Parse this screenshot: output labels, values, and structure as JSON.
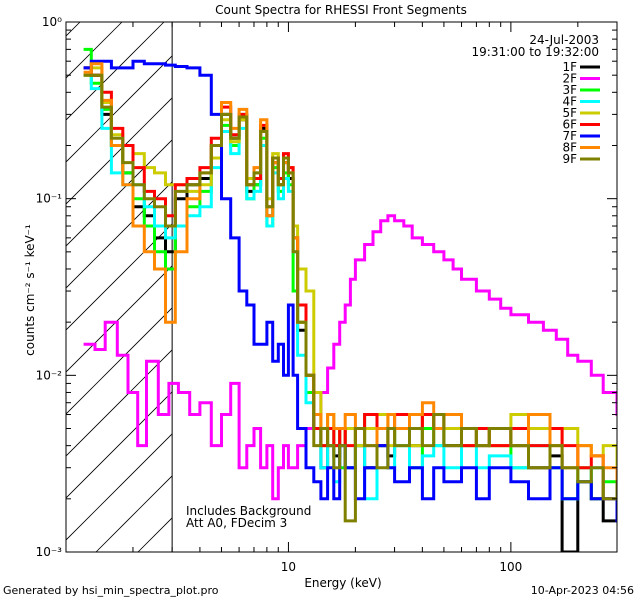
{
  "chart_data": {
    "type": "line",
    "title": "Count Spectra for RHESSI Front Segments",
    "xlabel": "Energy (keV)",
    "ylabel": "counts cm⁻² s⁻¹ keV⁻¹",
    "xscale": "log",
    "yscale": "log",
    "xlim": [
      1,
      300
    ],
    "ylim": [
      0.001,
      1
    ],
    "x_tick_labels": [
      {
        "value": 10,
        "label": "10"
      },
      {
        "value": 100,
        "label": "100"
      }
    ],
    "y_tick_labels": [
      {
        "value": 0.001,
        "label": "10⁻³"
      },
      {
        "value": 0.01,
        "label": "10⁻²"
      },
      {
        "value": 0.1,
        "label": "10⁻¹"
      },
      {
        "value": 1,
        "label": "10⁰"
      }
    ],
    "date": "24-Jul-2003",
    "time_range": "19:31:00 to 19:32:00",
    "legend_position": "top-right",
    "annotations": [
      "Includes Background",
      "Att A0, FDecim 3"
    ],
    "shaded_region_kev": [
      1,
      3
    ],
    "series": [
      {
        "name": "1F",
        "color": "#000000",
        "x": [
          1.2,
          1.3,
          1.45,
          1.6,
          1.8,
          2.0,
          2.25,
          2.5,
          2.8,
          3.1,
          3.5,
          4.0,
          4.5,
          5.0,
          5.5,
          6.0,
          6.5,
          7.0,
          7.5,
          8.0,
          8.5,
          9.0,
          9.5,
          10,
          10.5,
          11,
          12,
          13,
          14,
          15,
          16,
          17,
          18,
          20,
          22,
          25,
          28,
          30,
          35,
          40,
          45,
          50,
          60,
          70,
          80,
          100,
          120,
          150,
          170,
          200,
          230,
          260,
          300
        ],
        "y": [
          0.55,
          0.5,
          0.3,
          0.2,
          0.14,
          0.09,
          0.08,
          0.06,
          0.05,
          0.1,
          0.12,
          0.13,
          0.2,
          0.3,
          0.22,
          0.28,
          0.11,
          0.12,
          0.25,
          0.08,
          0.16,
          0.12,
          0.16,
          0.13,
          0.06,
          0.018,
          0.01,
          0.005,
          0.003,
          0.004,
          0.0035,
          0.005,
          0.003,
          0.004,
          0.003,
          0.004,
          0.0035,
          0.005,
          0.004,
          0.006,
          0.005,
          0.004,
          0.005,
          0.004,
          0.005,
          0.004,
          0.003,
          0.0035,
          0.001,
          0.0025,
          0.002,
          0.0015,
          0.002
        ]
      },
      {
        "name": "2F",
        "color": "#ff00ff",
        "x": [
          1.2,
          1.35,
          1.5,
          1.7,
          1.9,
          2.1,
          2.3,
          2.6,
          2.9,
          3.2,
          3.6,
          4.0,
          4.5,
          5.0,
          5.5,
          6.0,
          6.5,
          7.0,
          7.5,
          8.0,
          8.5,
          9.0,
          9.5,
          10,
          11,
          12,
          13,
          14,
          15,
          16,
          17,
          18,
          19,
          20,
          22,
          24,
          26,
          28,
          30,
          33,
          36,
          40,
          45,
          50,
          55,
          60,
          70,
          80,
          90,
          100,
          120,
          140,
          160,
          180,
          200,
          230,
          260,
          300
        ],
        "y": [
          0.015,
          0.014,
          0.02,
          0.013,
          0.008,
          0.004,
          0.012,
          0.006,
          0.009,
          0.008,
          0.006,
          0.007,
          0.004,
          0.006,
          0.009,
          0.003,
          0.004,
          0.005,
          0.003,
          0.004,
          0.002,
          0.003,
          0.004,
          0.003,
          0.004,
          0.005,
          0.006,
          0.008,
          0.011,
          0.015,
          0.02,
          0.025,
          0.035,
          0.045,
          0.055,
          0.065,
          0.075,
          0.08,
          0.075,
          0.07,
          0.06,
          0.055,
          0.05,
          0.045,
          0.04,
          0.035,
          0.03,
          0.027,
          0.024,
          0.022,
          0.02,
          0.018,
          0.016,
          0.013,
          0.012,
          0.01,
          0.008,
          0.006
        ]
      },
      {
        "name": "3F",
        "color": "#00ff00",
        "x": [
          1.2,
          1.3,
          1.45,
          1.6,
          1.8,
          2.0,
          2.25,
          2.5,
          2.8,
          3.1,
          3.5,
          4.0,
          4.5,
          5.0,
          5.5,
          6.0,
          6.5,
          7.0,
          7.5,
          8.0,
          8.5,
          9.0,
          9.5,
          10,
          10.5,
          11,
          12,
          13,
          14,
          15,
          16,
          17,
          18,
          20,
          22,
          25,
          28,
          30,
          35,
          40,
          45,
          50,
          60,
          70,
          80,
          100,
          120,
          150,
          170,
          200,
          230,
          260,
          300
        ],
        "y": [
          0.7,
          0.45,
          0.32,
          0.2,
          0.14,
          0.1,
          0.07,
          0.05,
          0.04,
          0.07,
          0.09,
          0.11,
          0.17,
          0.26,
          0.2,
          0.3,
          0.1,
          0.12,
          0.22,
          0.07,
          0.15,
          0.11,
          0.14,
          0.12,
          0.03,
          0.02,
          0.008,
          0.006,
          0.004,
          0.005,
          0.004,
          0.003,
          0.005,
          0.004,
          0.006,
          0.004,
          0.005,
          0.004,
          0.003,
          0.005,
          0.004,
          0.006,
          0.004,
          0.005,
          0.004,
          0.003,
          0.004,
          0.003,
          0.002,
          0.003,
          0.002,
          0.0025,
          0.002
        ]
      },
      {
        "name": "4F",
        "color": "#00ffff",
        "x": [
          1.2,
          1.3,
          1.45,
          1.6,
          1.8,
          2.0,
          2.25,
          2.5,
          2.8,
          3.1,
          3.5,
          4.0,
          4.5,
          5.0,
          5.5,
          6.0,
          6.5,
          7.0,
          7.5,
          8.0,
          8.5,
          9.0,
          9.5,
          10,
          10.5,
          11,
          12,
          13,
          14,
          15,
          16,
          17,
          18,
          20,
          22,
          25,
          28,
          30,
          35,
          40,
          45,
          50,
          60,
          70,
          80,
          100,
          120,
          150,
          170,
          200,
          230,
          260,
          300
        ],
        "y": [
          0.5,
          0.42,
          0.25,
          0.14,
          0.12,
          0.12,
          0.09,
          0.07,
          0.06,
          0.07,
          0.08,
          0.09,
          0.15,
          0.24,
          0.18,
          0.25,
          0.1,
          0.11,
          0.2,
          0.07,
          0.14,
          0.1,
          0.13,
          0.11,
          0.05,
          0.013,
          0.007,
          0.005,
          0.003,
          0.004,
          0.0025,
          0.004,
          0.003,
          0.004,
          0.002,
          0.004,
          0.003,
          0.004,
          0.003,
          0.0035,
          0.004,
          0.003,
          0.004,
          0.003,
          0.0035,
          0.003,
          0.004,
          0.003,
          0.002,
          0.0025,
          0.003,
          0.002,
          0.0025
        ]
      },
      {
        "name": "5F",
        "color": "#cccc00",
        "x": [
          1.2,
          1.3,
          1.45,
          1.6,
          1.8,
          2.0,
          2.25,
          2.5,
          2.8,
          3.1,
          3.5,
          4.0,
          4.5,
          5.0,
          5.5,
          6.0,
          6.5,
          7.0,
          7.5,
          8.0,
          8.5,
          9.0,
          9.5,
          10,
          10.5,
          11,
          12,
          13,
          14,
          15,
          16,
          17,
          18,
          20,
          22,
          25,
          28,
          30,
          35,
          40,
          45,
          50,
          60,
          70,
          80,
          100,
          120,
          150,
          170,
          200,
          230,
          260,
          300
        ],
        "y": [
          0.5,
          0.55,
          0.35,
          0.23,
          0.2,
          0.18,
          0.15,
          0.14,
          0.12,
          0.12,
          0.11,
          0.12,
          0.17,
          0.28,
          0.21,
          0.28,
          0.13,
          0.14,
          0.24,
          0.1,
          0.18,
          0.13,
          0.17,
          0.15,
          0.07,
          0.04,
          0.03,
          0.008,
          0.005,
          0.006,
          0.005,
          0.004,
          0.005,
          0.004,
          0.005,
          0.006,
          0.004,
          0.005,
          0.004,
          0.006,
          0.005,
          0.005,
          0.004,
          0.005,
          0.004,
          0.006,
          0.005,
          0.004,
          0.005,
          0.004,
          0.0035,
          0.004,
          0.003
        ]
      },
      {
        "name": "6F",
        "color": "#ff0000",
        "x": [
          1.2,
          1.3,
          1.45,
          1.6,
          1.8,
          2.0,
          2.25,
          2.5,
          2.8,
          3.1,
          3.5,
          4.0,
          4.5,
          5.0,
          5.5,
          6.0,
          6.5,
          7.0,
          7.5,
          8.0,
          8.5,
          9.0,
          9.5,
          10,
          10.5,
          11,
          12,
          13,
          14,
          15,
          16,
          17,
          18,
          20,
          22,
          25,
          28,
          30,
          35,
          40,
          45,
          50,
          60,
          70,
          80,
          100,
          120,
          150,
          170,
          200,
          230,
          260,
          300
        ],
        "y": [
          0.55,
          0.5,
          0.4,
          0.25,
          0.2,
          0.15,
          0.11,
          0.1,
          0.08,
          0.12,
          0.13,
          0.15,
          0.22,
          0.33,
          0.23,
          0.3,
          0.12,
          0.13,
          0.26,
          0.09,
          0.17,
          0.13,
          0.18,
          0.15,
          0.06,
          0.025,
          0.01,
          0.005,
          0.004,
          0.005,
          0.004,
          0.005,
          0.004,
          0.005,
          0.006,
          0.004,
          0.005,
          0.006,
          0.005,
          0.006,
          0.005,
          0.006,
          0.004,
          0.005,
          0.004,
          0.005,
          0.004,
          0.005,
          0.004,
          0.003,
          0.0035,
          0.002,
          0.0025
        ]
      },
      {
        "name": "7F",
        "color": "#0000ff",
        "x": [
          1.2,
          1.3,
          1.45,
          1.6,
          1.8,
          2.0,
          2.25,
          2.5,
          2.8,
          3.1,
          3.5,
          4.0,
          4.5,
          5.0,
          5.5,
          6.0,
          6.5,
          7.0,
          7.5,
          8.0,
          8.5,
          9.0,
          9.5,
          10,
          10.5,
          11,
          12,
          13,
          14,
          15,
          16,
          17,
          18,
          20,
          22,
          25,
          28,
          30,
          35,
          40,
          45,
          50,
          60,
          70,
          80,
          100,
          120,
          150,
          170,
          200,
          230,
          260,
          300
        ],
        "y": [
          0.55,
          0.6,
          0.6,
          0.55,
          0.55,
          0.6,
          0.58,
          0.58,
          0.57,
          0.56,
          0.55,
          0.5,
          0.3,
          0.1,
          0.06,
          0.03,
          0.025,
          0.015,
          0.015,
          0.02,
          0.012,
          0.015,
          0.01,
          0.025,
          0.01,
          0.005,
          0.003,
          0.0025,
          0.002,
          0.003,
          0.002,
          0.004,
          0.003,
          0.002,
          0.003,
          0.004,
          0.003,
          0.0025,
          0.003,
          0.002,
          0.003,
          0.0025,
          0.003,
          0.002,
          0.003,
          0.0025,
          0.002,
          0.003,
          0.002,
          0.0025,
          0.002,
          0.002,
          0.0015
        ]
      },
      {
        "name": "8F",
        "color": "#ff8800",
        "x": [
          1.2,
          1.3,
          1.45,
          1.6,
          1.8,
          2.0,
          2.25,
          2.5,
          2.8,
          3.1,
          3.5,
          4.0,
          4.5,
          5.0,
          5.5,
          6.0,
          6.5,
          7.0,
          7.5,
          8.0,
          8.5,
          9.0,
          9.5,
          10,
          10.5,
          11,
          12,
          13,
          14,
          15,
          16,
          17,
          18,
          20,
          22,
          25,
          28,
          30,
          35,
          40,
          45,
          50,
          60,
          70,
          80,
          100,
          120,
          150,
          170,
          200,
          230,
          260,
          300
        ],
        "y": [
          0.52,
          0.58,
          0.36,
          0.2,
          0.12,
          0.07,
          0.05,
          0.04,
          0.02,
          0.05,
          0.1,
          0.14,
          0.2,
          0.35,
          0.25,
          0.32,
          0.12,
          0.15,
          0.28,
          0.08,
          0.16,
          0.12,
          0.16,
          0.14,
          0.06,
          0.02,
          0.01,
          0.006,
          0.005,
          0.006,
          0.005,
          0.005,
          0.006,
          0.005,
          0.004,
          0.005,
          0.006,
          0.005,
          0.006,
          0.007,
          0.005,
          0.006,
          0.005,
          0.004,
          0.005,
          0.004,
          0.006,
          0.004,
          0.003,
          0.004,
          0.0035,
          0.003,
          0.002
        ]
      },
      {
        "name": "9F",
        "color": "#808000",
        "x": [
          1.2,
          1.3,
          1.45,
          1.6,
          1.8,
          2.0,
          2.25,
          2.5,
          2.8,
          3.1,
          3.5,
          4.0,
          4.5,
          5.0,
          5.5,
          6.0,
          6.5,
          7.0,
          7.5,
          8.0,
          8.5,
          9.0,
          9.5,
          10,
          10.5,
          11,
          12,
          13,
          14,
          15,
          16,
          17,
          18,
          20,
          22,
          25,
          28,
          30,
          35,
          40,
          45,
          50,
          60,
          70,
          80,
          100,
          120,
          150,
          170,
          200,
          230,
          260,
          300
        ],
        "y": [
          0.5,
          0.5,
          0.33,
          0.22,
          0.16,
          0.12,
          0.1,
          0.09,
          0.07,
          0.11,
          0.12,
          0.14,
          0.2,
          0.3,
          0.22,
          0.29,
          0.12,
          0.14,
          0.24,
          0.09,
          0.17,
          0.12,
          0.17,
          0.14,
          0.05,
          0.02,
          0.01,
          0.004,
          0.005,
          0.004,
          0.003,
          0.004,
          0.0015,
          0.005,
          0.004,
          0.003,
          0.005,
          0.004,
          0.005,
          0.004,
          0.006,
          0.004,
          0.005,
          0.004,
          0.005,
          0.004,
          0.003,
          0.004,
          0.003,
          0.0025,
          0.003,
          0.002,
          0.0025
        ]
      }
    ]
  },
  "footer": {
    "left": "Generated by hsi_min_spectra_plot.pro",
    "right": "10-Apr-2023 04:56"
  }
}
